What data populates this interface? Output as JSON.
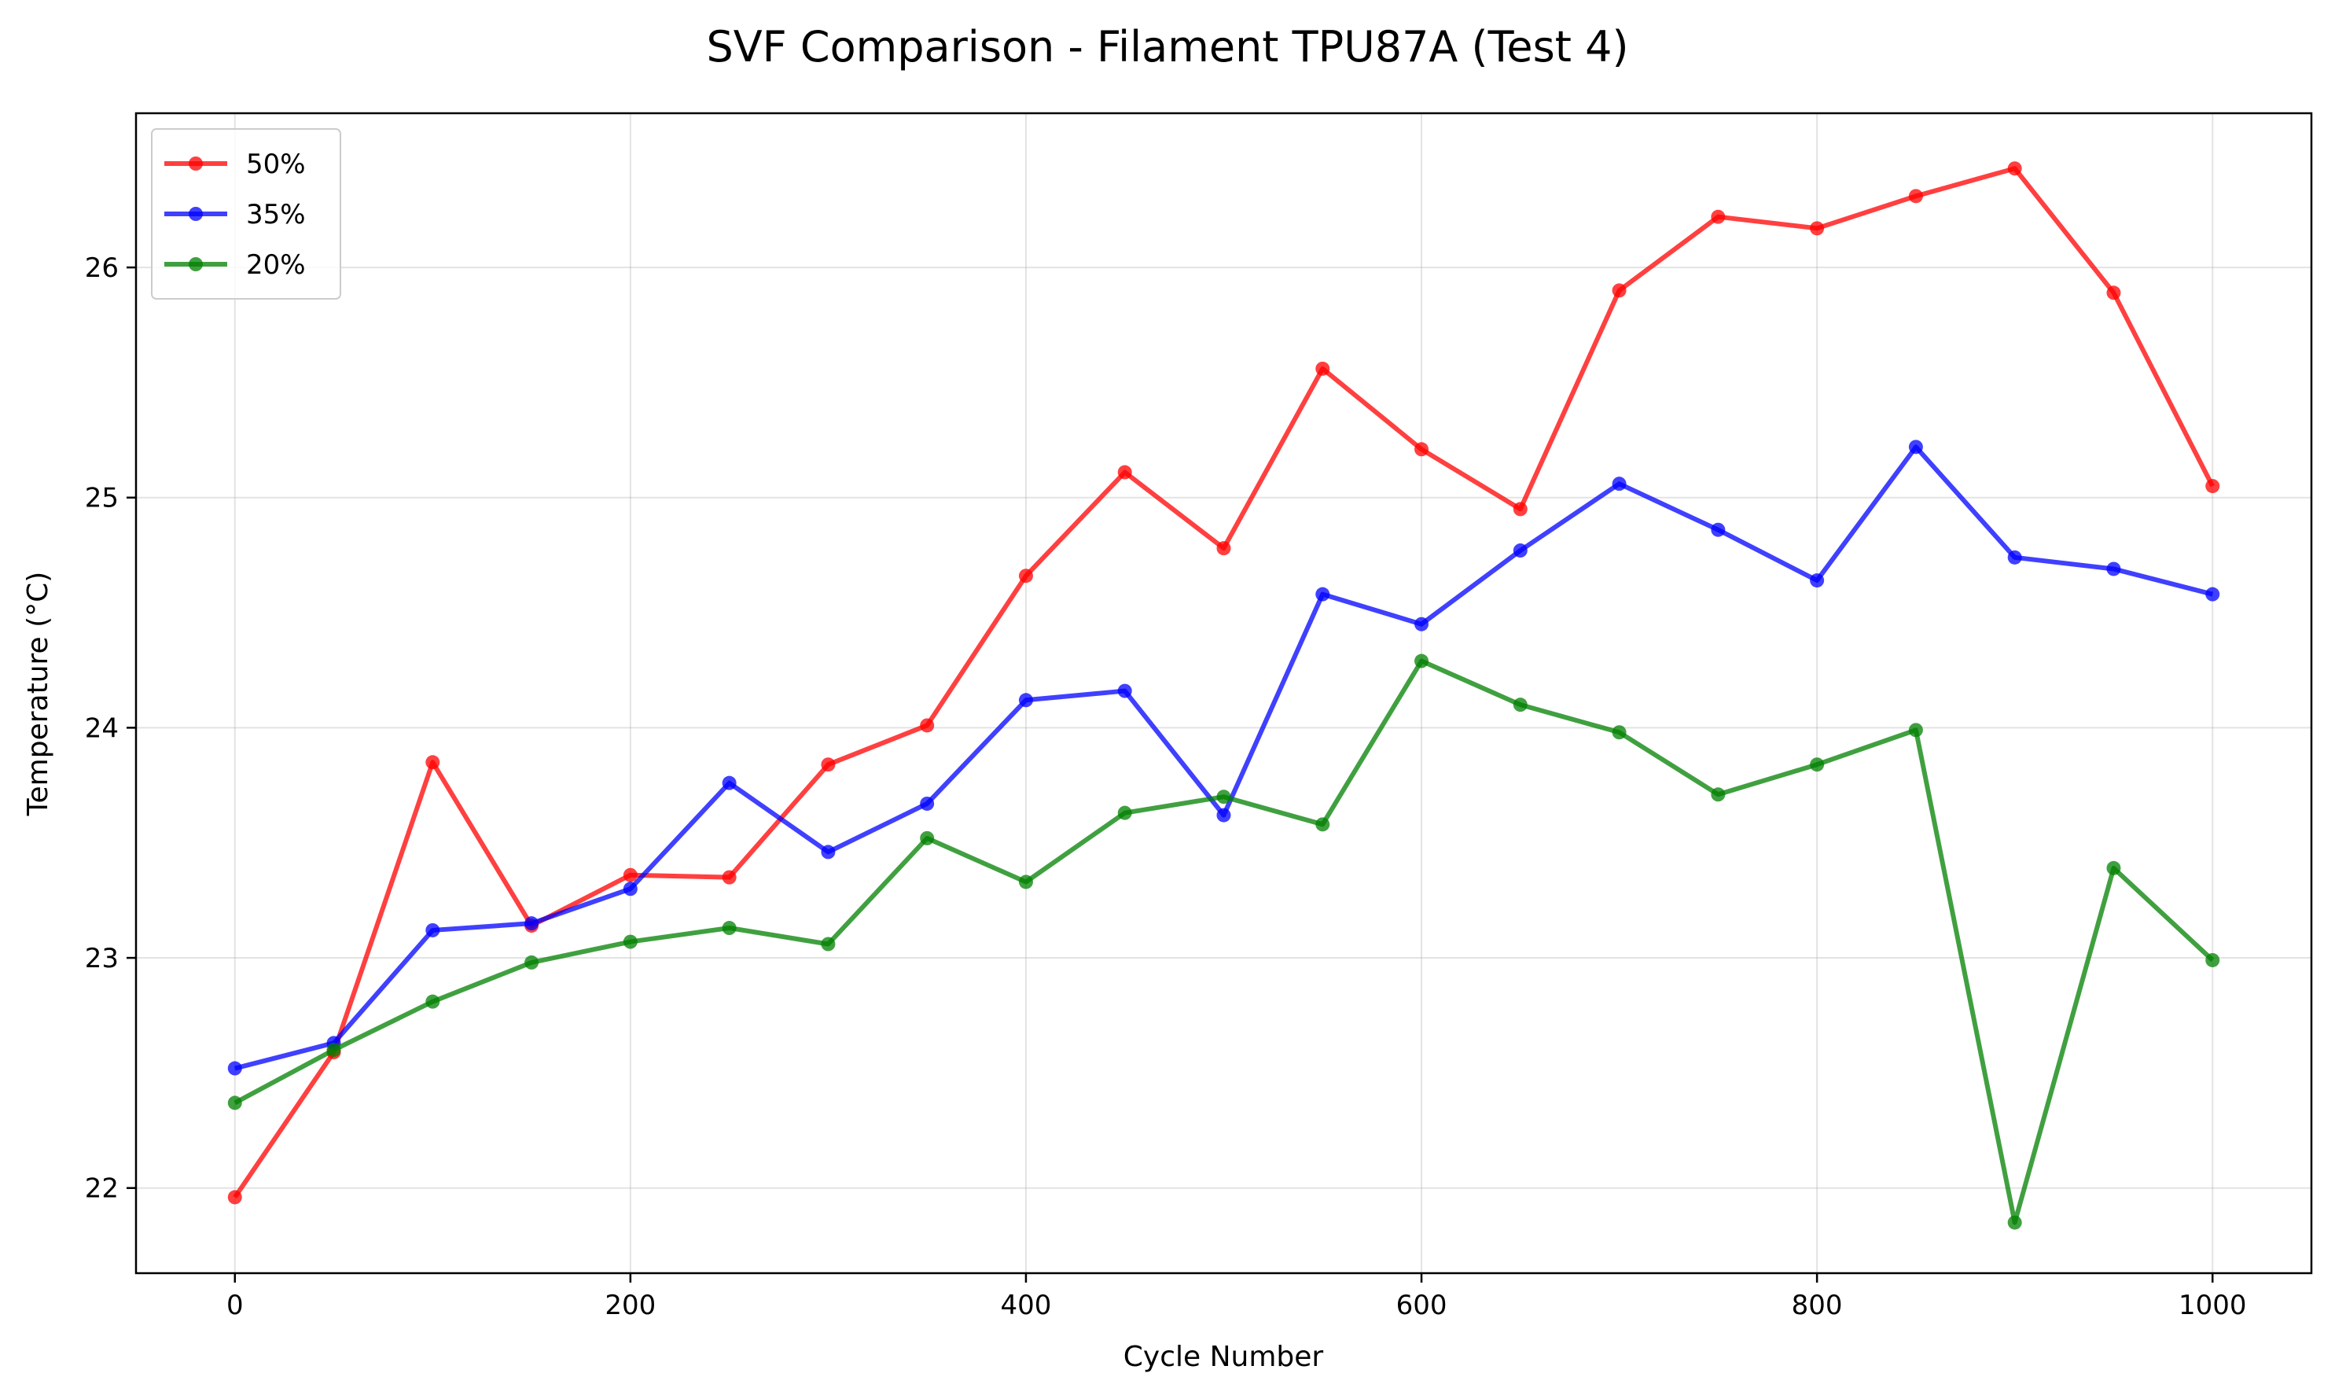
{
  "chart_data": {
    "type": "line",
    "title": "SVF Comparison - Filament TPU87A (Test 4)",
    "xlabel": "Cycle Number",
    "ylabel": "Temperature (°C)",
    "xlim": [
      -50,
      1050
    ],
    "ylim": [
      21.63,
      26.67
    ],
    "x_ticks": [
      0,
      200,
      400,
      600,
      800,
      1000
    ],
    "y_ticks": [
      22,
      23,
      24,
      25,
      26
    ],
    "grid": true,
    "legend_position": "top-left",
    "x": [
      0,
      50,
      100,
      150,
      200,
      250,
      300,
      350,
      400,
      450,
      500,
      550,
      600,
      650,
      700,
      750,
      800,
      850,
      900,
      950,
      1000
    ],
    "series": [
      {
        "name": "50%",
        "color": "#ff0000",
        "values": [
          21.96,
          22.59,
          23.85,
          23.14,
          23.36,
          23.35,
          23.84,
          24.01,
          24.66,
          25.11,
          24.78,
          25.56,
          25.21,
          24.95,
          25.9,
          26.22,
          26.17,
          26.31,
          26.43,
          25.89,
          25.05
        ]
      },
      {
        "name": "35%",
        "color": "#0000ff",
        "values": [
          22.52,
          22.63,
          23.12,
          23.15,
          23.3,
          23.76,
          23.46,
          23.67,
          24.12,
          24.16,
          23.62,
          24.58,
          24.45,
          24.77,
          25.06,
          24.86,
          24.64,
          25.22,
          24.74,
          24.69,
          24.58
        ]
      },
      {
        "name": "20%",
        "color": "#008000",
        "values": [
          22.37,
          22.6,
          22.81,
          22.98,
          23.07,
          23.13,
          23.06,
          23.52,
          23.33,
          23.63,
          23.7,
          23.58,
          24.29,
          24.1,
          23.98,
          23.71,
          23.84,
          23.99,
          21.85,
          23.39,
          22.99
        ]
      }
    ]
  }
}
